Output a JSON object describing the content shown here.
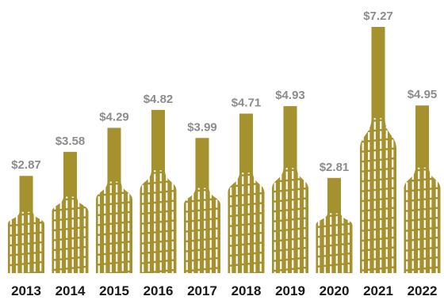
{
  "chart_data": {
    "type": "bar",
    "title": "",
    "xlabel": "",
    "ylabel": "",
    "categories": [
      "2013",
      "2014",
      "2015",
      "2016",
      "2017",
      "2018",
      "2019",
      "2020",
      "2021",
      "2022"
    ],
    "values": [
      2.87,
      3.58,
      4.29,
      4.82,
      3.99,
      4.71,
      4.93,
      2.81,
      7.27,
      4.95
    ],
    "value_labels": [
      "$2.87",
      "$3.58",
      "$4.29",
      "$4.82",
      "$3.99",
      "$4.71",
      "$4.93",
      "$2.81",
      "$7.27",
      "$4.95"
    ],
    "ylim": [
      0,
      7.27
    ],
    "grid": false,
    "legend": "none",
    "bar_style": "wine-bottle",
    "bar_color": "#a5922f"
  }
}
